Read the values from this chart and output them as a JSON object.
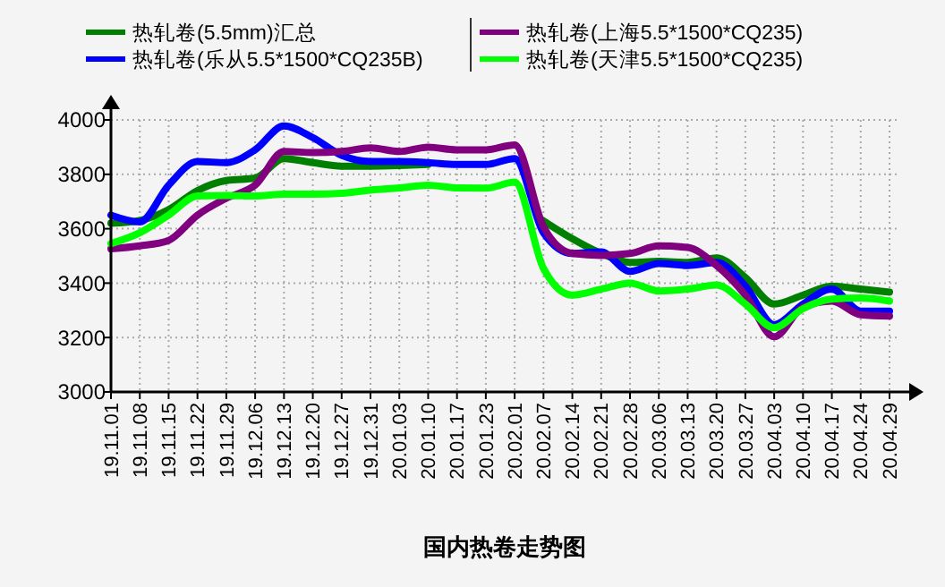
{
  "chart_data": {
    "type": "line",
    "title": "国内热卷走势图",
    "categories": [
      "19.11.01",
      "19.11.08",
      "19.11.15",
      "19.11.22",
      "19.11.29",
      "19.12.06",
      "19.12.13",
      "19.12.20",
      "19.12.27",
      "19.12.31",
      "20.01.03",
      "20.01.10",
      "20.01.17",
      "20.01.23",
      "20.02.01",
      "20.02.07",
      "20.02.14",
      "20.02.21",
      "20.02.28",
      "20.03.06",
      "20.03.13",
      "20.03.20",
      "20.03.27",
      "20.04.03",
      "20.04.10",
      "20.04.17",
      "20.04.24",
      "20.04.29"
    ],
    "series": [
      {
        "name": "热轧卷(5.5mm)汇总",
        "color": "#007f00",
        "values": [
          3620,
          3630,
          3670,
          3740,
          3777,
          3786,
          3858,
          3843,
          3830,
          3830,
          3832,
          3836,
          null,
          null,
          null,
          3629,
          3563,
          3509,
          3476,
          3480,
          3476,
          3493,
          3421,
          3323,
          3356,
          3389,
          3378,
          3367
        ]
      },
      {
        "name": "热轧卷(乐从5.5*1500*CQ235B)",
        "color": "#0000ff",
        "values": [
          3650,
          3625,
          3760,
          3847,
          3843,
          3890,
          3978,
          3935,
          3870,
          3847,
          3847,
          3843,
          3836,
          3836,
          3858,
          3585,
          3509,
          3515,
          3443,
          3472,
          3465,
          3476,
          3389,
          3247,
          3323,
          3378,
          3297,
          3297
        ]
      },
      {
        "name": "热轧卷(上海5.5*1500*CQ235)",
        "color": "#800080",
        "values": [
          3526,
          3537,
          3557,
          3650,
          3712,
          3760,
          3884,
          3880,
          3884,
          3897,
          3884,
          3900,
          3890,
          3890,
          3908,
          3607,
          3509,
          3502,
          3509,
          3537,
          3531,
          3465,
          3356,
          3203,
          3312,
          3334,
          3284,
          3279
        ]
      },
      {
        "name": "热轧卷(天津5.5*1500*CQ235)",
        "color": "#00ff00",
        "values": [
          3545,
          3585,
          3650,
          3720,
          3722,
          3720,
          3727,
          3727,
          3730,
          3742,
          3750,
          3760,
          3750,
          3749,
          3771,
          3454,
          3356,
          3378,
          3400,
          3371,
          3378,
          3393,
          3323,
          3236,
          3306,
          3341,
          3345,
          3334
        ]
      }
    ],
    "ylim": [
      3000,
      4000
    ],
    "yticks": [
      3000,
      3200,
      3400,
      3600,
      3800,
      4000
    ],
    "grid": true,
    "legend": "top",
    "marker": "none",
    "line_style": "solid"
  }
}
